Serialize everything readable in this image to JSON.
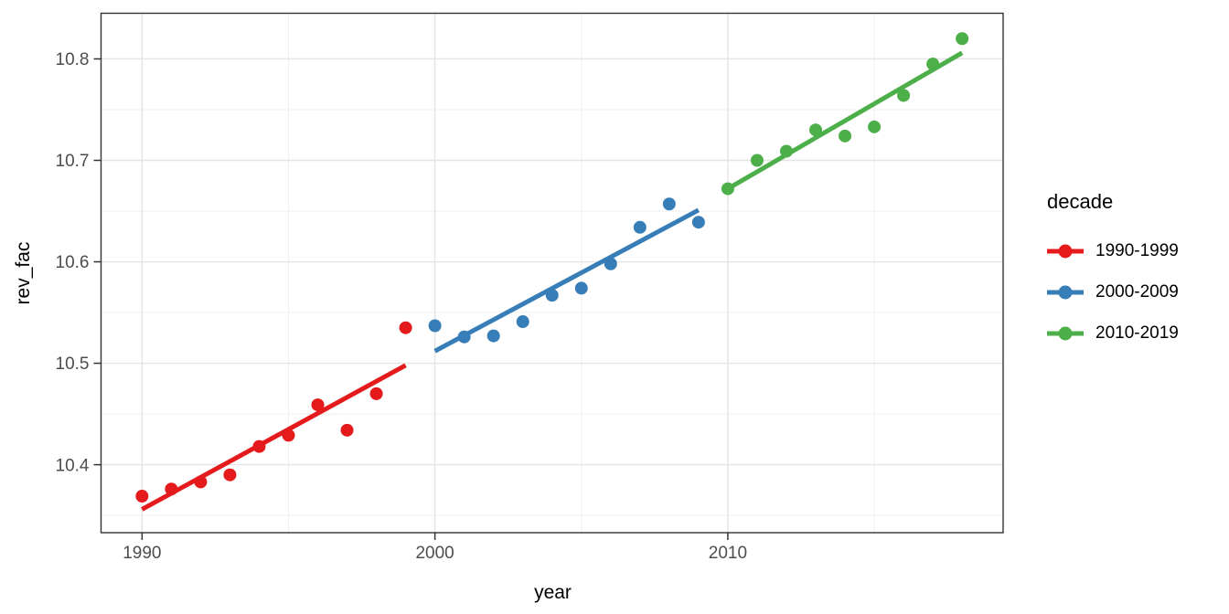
{
  "figure": {
    "background": "#ffffff",
    "panel_border_color": "#333333",
    "grid_major_color": "#e4e4e4",
    "grid_minor_color": "#efefef",
    "tick_color": "#333333",
    "tick_label_color": "#4d4d4d",
    "axis_title_color": "#000000"
  },
  "chart_data": {
    "type": "scatter",
    "title": "",
    "xlabel": "year",
    "ylabel": "rev_fac",
    "legend_title": "decade",
    "legend_position": "right",
    "grid": true,
    "xlim": [
      1988.6,
      2019.4
    ],
    "ylim": [
      10.333,
      10.845
    ],
    "x_ticks": [
      1990,
      2000,
      2010
    ],
    "x_minor_ticks": [
      1995,
      2005,
      2015
    ],
    "y_ticks": [
      10.4,
      10.5,
      10.6,
      10.7,
      10.8
    ],
    "y_minor_ticks": [
      10.35,
      10.45,
      10.55,
      10.65,
      10.75
    ],
    "series": [
      {
        "name": "1990-1999",
        "color": "#E41A1C",
        "x": [
          1990,
          1991,
          1992,
          1993,
          1994,
          1995,
          1996,
          1997,
          1998,
          1999
        ],
        "y": [
          10.369,
          10.376,
          10.383,
          10.39,
          10.418,
          10.429,
          10.459,
          10.434,
          10.47,
          10.535
        ],
        "fit": {
          "x": [
            1990,
            1999
          ],
          "y": [
            10.356,
            10.498
          ]
        }
      },
      {
        "name": "2000-2009",
        "color": "#377EB8",
        "x": [
          2000,
          2001,
          2002,
          2003,
          2004,
          2005,
          2006,
          2007,
          2008,
          2009
        ],
        "y": [
          10.537,
          10.526,
          10.527,
          10.541,
          10.567,
          10.574,
          10.598,
          10.634,
          10.657,
          10.639
        ],
        "fit": {
          "x": [
            2000,
            2009
          ],
          "y": [
            10.512,
            10.651
          ]
        }
      },
      {
        "name": "2010-2019",
        "color": "#4DAF4A",
        "x": [
          2010,
          2011,
          2012,
          2013,
          2014,
          2015,
          2016,
          2017,
          2018
        ],
        "y": [
          10.672,
          10.7,
          10.709,
          10.73,
          10.724,
          10.733,
          10.764,
          10.795,
          10.82
        ],
        "fit": {
          "x": [
            2010,
            2018
          ],
          "y": [
            10.672,
            10.806
          ]
        }
      }
    ]
  }
}
